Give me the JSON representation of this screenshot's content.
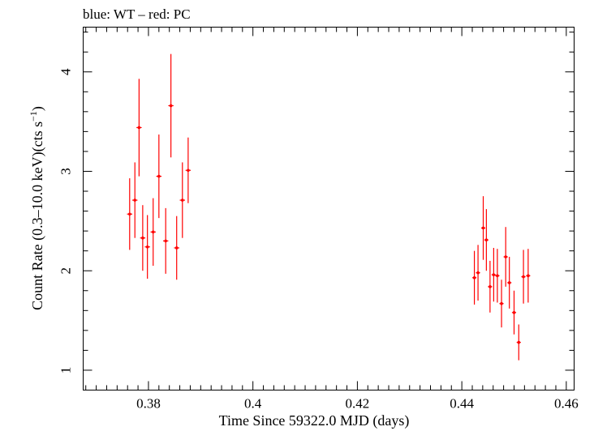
{
  "chart_data": {
    "type": "scatter",
    "title": "blue: WT – red: PC",
    "xlabel": "Time Since 59322.0 MJD (days)",
    "ylabel": "Count Rate (0.3–10.0 keV)(cts s",
    "ylabel_sup": "−1",
    "ylabel_end": ")",
    "xlim": [
      0.3675,
      0.4615
    ],
    "ylim": [
      0.8,
      4.45
    ],
    "x_ticks": [
      0.38,
      0.4,
      0.42,
      0.44,
      0.46
    ],
    "x_tick_labels": [
      "0.38",
      "0.4",
      "0.42",
      "0.44",
      "0.46"
    ],
    "x_minor_step": 0.002,
    "y_ticks": [
      1,
      2,
      3,
      4
    ],
    "y_tick_labels": [
      "1",
      "2",
      "3",
      "4"
    ],
    "y_minor_step": 0.2,
    "grid": false,
    "series": [
      {
        "name": "PC",
        "color": "#ff0000",
        "points": [
          {
            "x": 0.3764,
            "y": 2.57,
            "xerr": 0.0005,
            "yerr": 0.36
          },
          {
            "x": 0.3774,
            "y": 2.71,
            "xerr": 0.0005,
            "yerr": 0.38
          },
          {
            "x": 0.3782,
            "y": 3.44,
            "xerr": 0.0005,
            "yerr": 0.49
          },
          {
            "x": 0.3789,
            "y": 2.33,
            "xerr": 0.0005,
            "yerr": 0.33
          },
          {
            "x": 0.3798,
            "y": 2.24,
            "xerr": 0.0005,
            "yerr": 0.32
          },
          {
            "x": 0.3809,
            "y": 2.39,
            "xerr": 0.0005,
            "yerr": 0.34
          },
          {
            "x": 0.382,
            "y": 2.95,
            "xerr": 0.0005,
            "yerr": 0.42
          },
          {
            "x": 0.3833,
            "y": 2.3,
            "xerr": 0.0005,
            "yerr": 0.33
          },
          {
            "x": 0.3843,
            "y": 3.66,
            "xerr": 0.0005,
            "yerr": 0.52
          },
          {
            "x": 0.3854,
            "y": 2.23,
            "xerr": 0.0005,
            "yerr": 0.32
          },
          {
            "x": 0.3865,
            "y": 2.71,
            "xerr": 0.0005,
            "yerr": 0.38
          },
          {
            "x": 0.3876,
            "y": 3.01,
            "xerr": 0.0005,
            "yerr": 0.33
          },
          {
            "x": 0.4424,
            "y": 1.93,
            "xerr": 0.0004,
            "yerr": 0.27
          },
          {
            "x": 0.4431,
            "y": 1.98,
            "xerr": 0.0004,
            "yerr": 0.28
          },
          {
            "x": 0.4441,
            "y": 2.43,
            "xerr": 0.0004,
            "yerr": 0.32
          },
          {
            "x": 0.4447,
            "y": 2.31,
            "xerr": 0.0004,
            "yerr": 0.31
          },
          {
            "x": 0.4454,
            "y": 1.84,
            "xerr": 0.0004,
            "yerr": 0.26
          },
          {
            "x": 0.4461,
            "y": 1.96,
            "xerr": 0.0004,
            "yerr": 0.27
          },
          {
            "x": 0.4468,
            "y": 1.95,
            "xerr": 0.0004,
            "yerr": 0.27
          },
          {
            "x": 0.4476,
            "y": 1.67,
            "xerr": 0.0004,
            "yerr": 0.24
          },
          {
            "x": 0.4484,
            "y": 2.14,
            "xerr": 0.0004,
            "yerr": 0.3
          },
          {
            "x": 0.4491,
            "y": 1.88,
            "xerr": 0.0004,
            "yerr": 0.26
          },
          {
            "x": 0.45,
            "y": 1.58,
            "xerr": 0.0004,
            "yerr": 0.22
          },
          {
            "x": 0.4509,
            "y": 1.28,
            "xerr": 0.0004,
            "yerr": 0.18
          },
          {
            "x": 0.4518,
            "y": 1.94,
            "xerr": 0.0004,
            "yerr": 0.27
          },
          {
            "x": 0.4527,
            "y": 1.95,
            "xerr": 0.0004,
            "yerr": 0.27
          }
        ]
      }
    ]
  }
}
